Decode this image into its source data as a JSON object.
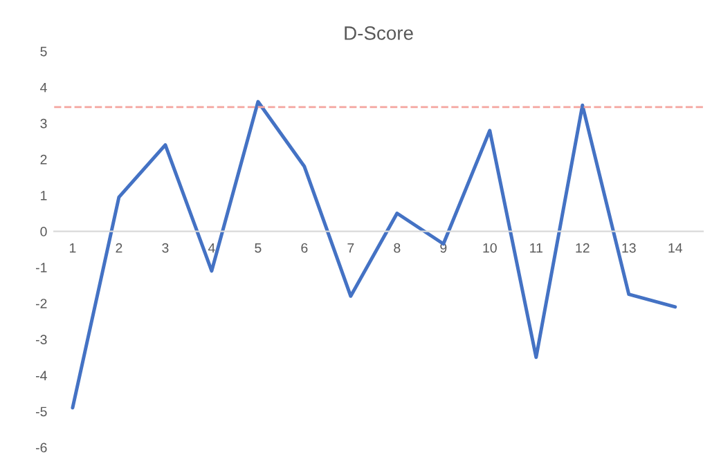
{
  "chart_data": {
    "type": "line",
    "title": "D-Score",
    "categories": [
      "1",
      "2",
      "3",
      "4",
      "5",
      "6",
      "7",
      "8",
      "9",
      "10",
      "11",
      "12",
      "13",
      "14"
    ],
    "series": [
      {
        "color": "#4472c4",
        "values": [
          -4.9,
          0.95,
          2.4,
          -1.1,
          3.6,
          1.8,
          -1.8,
          0.5,
          -0.35,
          2.8,
          -3.5,
          3.5,
          -1.75,
          -2.1
        ]
      }
    ],
    "ylim": [
      -6,
      5
    ],
    "yticks": [
      -6,
      -5,
      -4,
      -3,
      -2,
      -1,
      0,
      1,
      2,
      3,
      4,
      5
    ],
    "ref_lines": [
      {
        "axis": "y",
        "value": 3.45,
        "color": "#f4a6a0",
        "line_style": "dashed"
      }
    ],
    "grid": false,
    "marker": "none",
    "line_style": "solid"
  }
}
